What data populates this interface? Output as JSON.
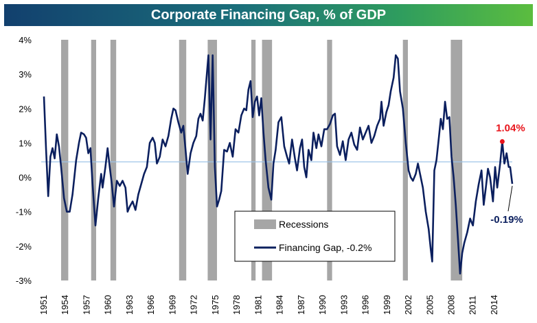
{
  "chart_data": {
    "type": "line",
    "title": "Corporate Financing Gap, % of GDP",
    "xlabel": "",
    "ylabel": "",
    "xlim": [
      1951,
      2016.5
    ],
    "ylim": [
      -3,
      4
    ],
    "yticks": [
      {
        "value": 4,
        "label": "4%"
      },
      {
        "value": 3,
        "label": "3%"
      },
      {
        "value": 2,
        "label": "2%"
      },
      {
        "value": 1,
        "label": "1%"
      },
      {
        "value": 0,
        "label": "0%"
      },
      {
        "value": -1,
        "label": "-1%"
      },
      {
        "value": -2,
        "label": "-2%"
      },
      {
        "value": -3,
        "label": "-3%"
      }
    ],
    "xticks": [
      1951,
      1954,
      1957,
      1960,
      1963,
      1966,
      1969,
      1972,
      1975,
      1978,
      1981,
      1984,
      1987,
      1990,
      1993,
      1996,
      1999,
      2002,
      2005,
      2008,
      2011,
      2014
    ],
    "reference_line": 0.45,
    "recessions": [
      [
        1953.4,
        1954.4
      ],
      [
        1957.6,
        1958.3
      ],
      [
        1960.3,
        1961.1
      ],
      [
        1969.9,
        1970.9
      ],
      [
        1973.9,
        1975.2
      ],
      [
        1980.0,
        1980.6
      ],
      [
        1981.5,
        1982.9
      ],
      [
        1990.6,
        1991.3
      ],
      [
        2001.2,
        2001.9
      ],
      [
        2007.9,
        2009.5
      ]
    ],
    "series": [
      {
        "name": "Financing Gap, -0.2%",
        "color": "#0b1f5e",
        "points": [
          [
            1951.0,
            2.35
          ],
          [
            1951.3,
            0.8
          ],
          [
            1951.6,
            -0.55
          ],
          [
            1951.9,
            0.6
          ],
          [
            1952.2,
            0.85
          ],
          [
            1952.5,
            0.55
          ],
          [
            1952.8,
            1.25
          ],
          [
            1953.1,
            0.9
          ],
          [
            1953.4,
            0.3
          ],
          [
            1953.8,
            -0.6
          ],
          [
            1954.2,
            -1.0
          ],
          [
            1954.6,
            -1.0
          ],
          [
            1955.0,
            -0.5
          ],
          [
            1955.5,
            0.5
          ],
          [
            1955.9,
            1.0
          ],
          [
            1956.2,
            1.3
          ],
          [
            1956.6,
            1.25
          ],
          [
            1956.9,
            1.15
          ],
          [
            1957.2,
            0.7
          ],
          [
            1957.5,
            0.85
          ],
          [
            1957.8,
            -0.2
          ],
          [
            1958.2,
            -1.4
          ],
          [
            1958.6,
            -0.6
          ],
          [
            1959.0,
            0.1
          ],
          [
            1959.2,
            -0.3
          ],
          [
            1959.6,
            0.3
          ],
          [
            1959.9,
            0.85
          ],
          [
            1960.2,
            0.3
          ],
          [
            1960.5,
            -0.2
          ],
          [
            1960.8,
            -0.85
          ],
          [
            1961.2,
            -0.1
          ],
          [
            1961.6,
            -0.25
          ],
          [
            1962.0,
            -0.1
          ],
          [
            1962.4,
            -0.3
          ],
          [
            1962.7,
            -1.0
          ],
          [
            1963.0,
            -0.85
          ],
          [
            1963.4,
            -0.7
          ],
          [
            1963.8,
            -0.95
          ],
          [
            1964.2,
            -0.5
          ],
          [
            1964.6,
            -0.2
          ],
          [
            1965.0,
            0.1
          ],
          [
            1965.4,
            0.3
          ],
          [
            1965.8,
            1.0
          ],
          [
            1966.2,
            1.15
          ],
          [
            1966.5,
            1.0
          ],
          [
            1966.8,
            0.4
          ],
          [
            1967.2,
            0.6
          ],
          [
            1967.6,
            1.1
          ],
          [
            1968.0,
            0.9
          ],
          [
            1968.4,
            1.2
          ],
          [
            1968.8,
            1.7
          ],
          [
            1969.1,
            2.0
          ],
          [
            1969.4,
            1.95
          ],
          [
            1969.8,
            1.6
          ],
          [
            1970.2,
            1.3
          ],
          [
            1970.5,
            1.5
          ],
          [
            1970.8,
            0.8
          ],
          [
            1971.1,
            0.1
          ],
          [
            1971.5,
            0.7
          ],
          [
            1971.9,
            1.0
          ],
          [
            1972.3,
            1.2
          ],
          [
            1972.6,
            1.7
          ],
          [
            1972.9,
            1.85
          ],
          [
            1973.2,
            1.65
          ],
          [
            1973.5,
            2.3
          ],
          [
            1973.8,
            3.05
          ],
          [
            1974.0,
            3.55
          ],
          [
            1974.3,
            1.1
          ],
          [
            1974.6,
            3.55
          ],
          [
            1974.9,
            0.3
          ],
          [
            1975.2,
            -0.85
          ],
          [
            1975.5,
            -0.65
          ],
          [
            1975.8,
            -0.4
          ],
          [
            1976.2,
            0.8
          ],
          [
            1976.6,
            0.75
          ],
          [
            1977.0,
            1.0
          ],
          [
            1977.4,
            0.6
          ],
          [
            1977.8,
            1.4
          ],
          [
            1978.2,
            1.3
          ],
          [
            1978.6,
            1.8
          ],
          [
            1979.0,
            2.0
          ],
          [
            1979.3,
            1.95
          ],
          [
            1979.6,
            2.55
          ],
          [
            1979.9,
            2.8
          ],
          [
            1980.2,
            1.75
          ],
          [
            1980.5,
            2.2
          ],
          [
            1980.8,
            2.35
          ],
          [
            1981.1,
            1.8
          ],
          [
            1981.4,
            2.3
          ],
          [
            1981.7,
            1.3
          ],
          [
            1982.0,
            0.5
          ],
          [
            1982.4,
            -0.3
          ],
          [
            1982.8,
            -0.65
          ],
          [
            1983.1,
            0.4
          ],
          [
            1983.4,
            0.8
          ],
          [
            1983.8,
            1.6
          ],
          [
            1984.2,
            1.75
          ],
          [
            1984.6,
            0.9
          ],
          [
            1985.0,
            0.6
          ],
          [
            1985.3,
            0.4
          ],
          [
            1985.7,
            1.1
          ],
          [
            1986.1,
            0.55
          ],
          [
            1986.4,
            0.2
          ],
          [
            1986.8,
            0.85
          ],
          [
            1987.1,
            1.1
          ],
          [
            1987.4,
            0.3
          ],
          [
            1987.7,
            0.0
          ],
          [
            1988.0,
            0.8
          ],
          [
            1988.4,
            0.5
          ],
          [
            1988.7,
            1.3
          ],
          [
            1989.1,
            0.85
          ],
          [
            1989.4,
            1.25
          ],
          [
            1989.8,
            0.9
          ],
          [
            1990.2,
            1.4
          ],
          [
            1990.6,
            1.4
          ],
          [
            1991.0,
            1.55
          ],
          [
            1991.4,
            1.8
          ],
          [
            1991.7,
            1.85
          ],
          [
            1992.0,
            0.9
          ],
          [
            1992.4,
            0.65
          ],
          [
            1992.8,
            1.05
          ],
          [
            1993.2,
            0.5
          ],
          [
            1993.6,
            1.1
          ],
          [
            1994.0,
            1.3
          ],
          [
            1994.4,
            0.95
          ],
          [
            1994.8,
            0.8
          ],
          [
            1995.2,
            1.45
          ],
          [
            1995.6,
            1.1
          ],
          [
            1996.0,
            1.3
          ],
          [
            1996.4,
            1.5
          ],
          [
            1996.8,
            1.0
          ],
          [
            1997.2,
            1.2
          ],
          [
            1997.6,
            1.5
          ],
          [
            1998.0,
            1.7
          ],
          [
            1998.2,
            2.2
          ],
          [
            1998.5,
            1.5
          ],
          [
            1998.9,
            1.9
          ],
          [
            1999.2,
            2.1
          ],
          [
            1999.5,
            2.5
          ],
          [
            1999.9,
            2.9
          ],
          [
            2000.2,
            3.55
          ],
          [
            2000.5,
            3.45
          ],
          [
            2000.8,
            2.5
          ],
          [
            2001.2,
            2.0
          ],
          [
            2001.6,
            1.0
          ],
          [
            2002.0,
            0.2
          ],
          [
            2002.3,
            0.0
          ],
          [
            2002.6,
            -0.1
          ],
          [
            2003.0,
            0.1
          ],
          [
            2003.3,
            0.4
          ],
          [
            2003.6,
            0.1
          ],
          [
            2004.0,
            -0.3
          ],
          [
            2004.4,
            -1.0
          ],
          [
            2004.8,
            -1.5
          ],
          [
            2005.1,
            -2.1
          ],
          [
            2005.3,
            -2.45
          ],
          [
            2005.6,
            0.2
          ],
          [
            2005.9,
            0.5
          ],
          [
            2006.2,
            1.1
          ],
          [
            2006.5,
            1.7
          ],
          [
            2006.8,
            1.4
          ],
          [
            2007.1,
            2.2
          ],
          [
            2007.4,
            1.7
          ],
          [
            2007.7,
            1.75
          ],
          [
            2008.0,
            0.6
          ],
          [
            2008.3,
            0.0
          ],
          [
            2008.6,
            -0.8
          ],
          [
            2008.9,
            -1.8
          ],
          [
            2009.2,
            -2.8
          ],
          [
            2009.5,
            -2.2
          ],
          [
            2009.8,
            -1.9
          ],
          [
            2010.2,
            -1.6
          ],
          [
            2010.6,
            -1.2
          ],
          [
            2011.0,
            -1.4
          ],
          [
            2011.4,
            -0.7
          ],
          [
            2011.8,
            -0.2
          ],
          [
            2012.2,
            0.2
          ],
          [
            2012.5,
            -0.8
          ],
          [
            2012.8,
            -0.3
          ],
          [
            2013.1,
            0.25
          ],
          [
            2013.4,
            0.0
          ],
          [
            2013.8,
            -0.7
          ],
          [
            2014.1,
            0.3
          ],
          [
            2014.4,
            -0.3
          ],
          [
            2014.8,
            0.4
          ],
          [
            2015.1,
            1.04
          ],
          [
            2015.4,
            0.4
          ],
          [
            2015.7,
            0.7
          ],
          [
            2016.0,
            0.3
          ],
          [
            2016.2,
            0.3
          ],
          [
            2016.5,
            -0.19
          ]
        ]
      }
    ],
    "legend": {
      "position": "bottom-center",
      "entries": [
        {
          "label": "Recessions",
          "swatch": "bar",
          "color": "#a6a6a6"
        },
        {
          "label": "Financing Gap, -0.2%",
          "swatch": "line",
          "color": "#0b1f5e"
        }
      ]
    },
    "annotations": [
      {
        "text": "1.04%",
        "x": 2015.1,
        "y": 1.04,
        "color": "#e8141b"
      },
      {
        "text": "-0.19%",
        "x": 2016.5,
        "y": -0.19,
        "color": "#0b1f5e"
      }
    ],
    "colors": {
      "recession": "#a6a6a6",
      "reference": "#9dc3e6",
      "highlight": "#e8141b"
    }
  }
}
